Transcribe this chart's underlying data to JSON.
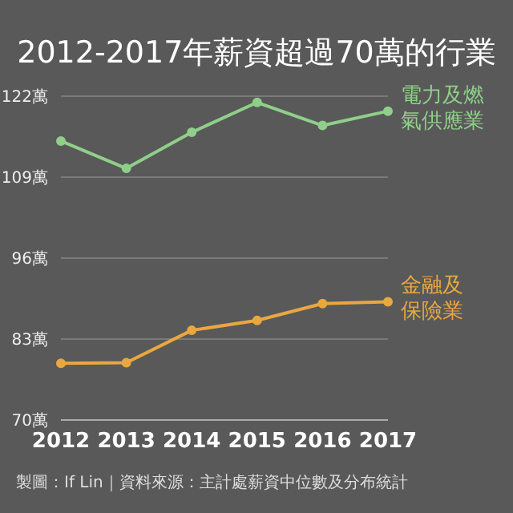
{
  "chart_data": {
    "type": "line",
    "title": "2012-2017年薪資超過70萬的行業",
    "categories": [
      "2012",
      "2013",
      "2014",
      "2015",
      "2016",
      "2017"
    ],
    "series": [
      {
        "name": "電力及燃氣供應業",
        "color": "#8fcf8a",
        "values": [
          114.8,
          110.4,
          116.2,
          121,
          117.3,
          119.6
        ]
      },
      {
        "name": "金融及保險業",
        "color": "#e9a83f",
        "values": [
          79.1,
          79.2,
          84.4,
          86,
          88.7,
          89
        ]
      }
    ],
    "ylim": [
      70,
      122
    ],
    "yticks": [
      {
        "value": 70,
        "label": "70萬"
      },
      {
        "value": 83,
        "label": "83萬"
      },
      {
        "value": 96,
        "label": "96萬"
      },
      {
        "value": 109,
        "label": "109萬"
      },
      {
        "value": 122,
        "label": "122萬"
      }
    ],
    "grid": "y",
    "legend": false,
    "marker": "circle",
    "line_style": "solid",
    "annotations": [
      "製圖：If Lin｜資料來源：主計處薪資中位數及分布統計"
    ]
  }
}
